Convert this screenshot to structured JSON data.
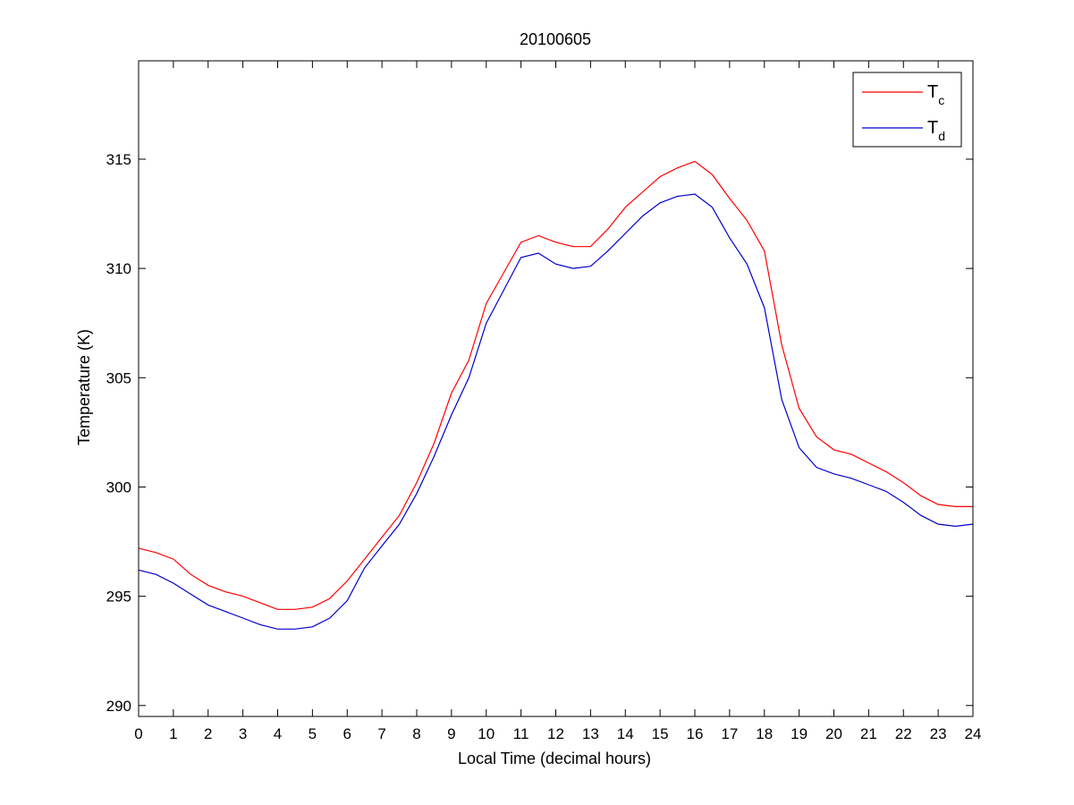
{
  "chart_data": {
    "type": "line",
    "title": "20100605",
    "xlabel": "Local Time (decimal hours)",
    "ylabel": "Temperature (K)",
    "xlim": [
      0,
      24
    ],
    "ylim": [
      289.5,
      319.5
    ],
    "xticks": [
      0,
      1,
      2,
      3,
      4,
      5,
      6,
      7,
      8,
      9,
      10,
      11,
      12,
      13,
      14,
      15,
      16,
      17,
      18,
      19,
      20,
      21,
      22,
      23,
      24
    ],
    "yticks": [
      290,
      295,
      300,
      305,
      310,
      315
    ],
    "grid": false,
    "legend_position": "top-right",
    "x": [
      0,
      0.5,
      1,
      1.5,
      2,
      2.5,
      3,
      3.5,
      4,
      4.5,
      5,
      5.5,
      6,
      6.5,
      7,
      7.5,
      8,
      8.5,
      9,
      9.5,
      10,
      10.5,
      11,
      11.5,
      12,
      12.5,
      13,
      13.5,
      14,
      14.5,
      15,
      15.5,
      16,
      16.5,
      17,
      17.5,
      18,
      18.5,
      19,
      19.5,
      20,
      20.5,
      21,
      21.5,
      22,
      22.5,
      23,
      23.5,
      24
    ],
    "series": [
      {
        "name": "T",
        "subscript": "c",
        "color": "#ff0000",
        "values": [
          297.2,
          297.0,
          296.7,
          296.0,
          295.5,
          295.2,
          295.0,
          294.7,
          294.4,
          294.4,
          294.5,
          294.9,
          295.7,
          296.7,
          297.7,
          298.7,
          300.2,
          302.0,
          304.3,
          305.8,
          308.4,
          309.8,
          311.2,
          311.5,
          311.2,
          311.0,
          311.0,
          311.8,
          312.8,
          313.5,
          314.2,
          314.6,
          314.9,
          314.3,
          313.2,
          312.2,
          310.8,
          306.5,
          303.6,
          302.3,
          301.7,
          301.5,
          301.1,
          300.7,
          300.2,
          299.6,
          299.2,
          299.1,
          299.1
        ]
      },
      {
        "name": "T",
        "subscript": "d",
        "color": "#0000cc",
        "values": [
          296.2,
          296.0,
          295.6,
          295.1,
          294.6,
          294.3,
          294.0,
          293.7,
          293.5,
          293.5,
          293.6,
          294.0,
          294.8,
          296.3,
          297.3,
          298.3,
          299.7,
          301.4,
          303.3,
          305.0,
          307.5,
          309.0,
          310.5,
          310.7,
          310.2,
          310.0,
          310.1,
          310.8,
          311.6,
          312.4,
          313.0,
          313.3,
          313.4,
          312.8,
          311.4,
          310.2,
          308.2,
          304.0,
          301.8,
          300.9,
          300.6,
          300.4,
          300.1,
          299.8,
          299.3,
          298.7,
          298.3,
          298.2,
          298.3
        ]
      }
    ]
  }
}
